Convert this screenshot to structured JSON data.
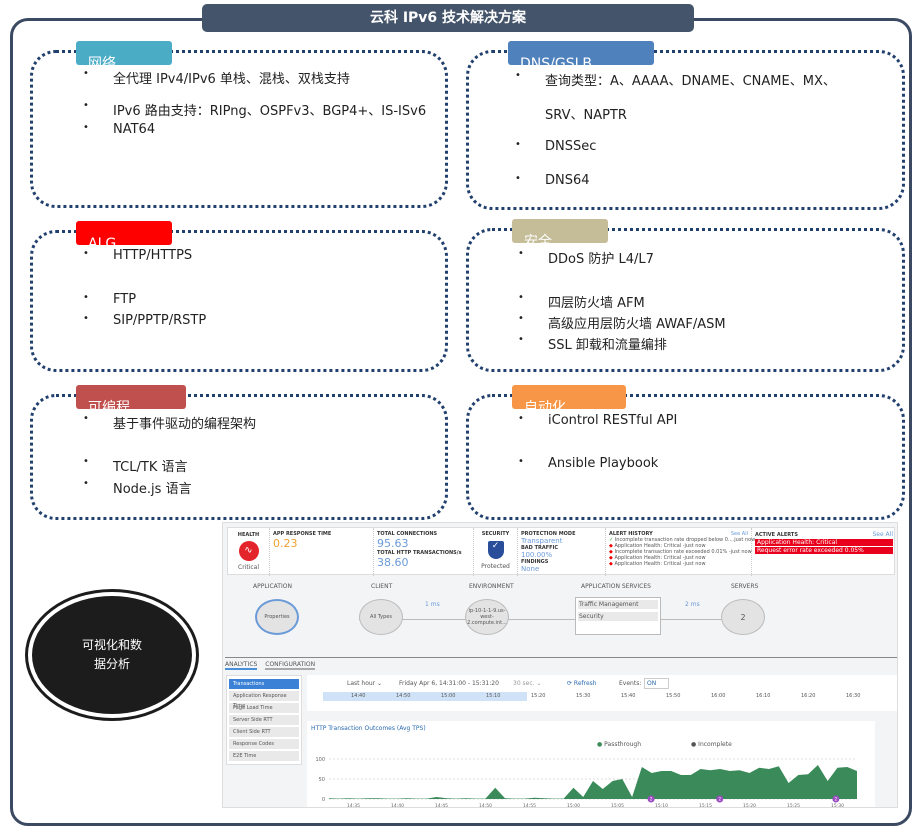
{
  "title": "云科 IPv6 技术解决方案",
  "panels": [
    {
      "tag": "网络",
      "color": "#4bacc6",
      "items": [
        "全代理 IPv4/IPv6 单栈、混栈、双栈支持",
        "IPv6 路由支持：RIPng、OSPFv3、BGP4+、IS-ISv6",
        "NAT64"
      ]
    },
    {
      "tag": "DNS/GSLB",
      "color": "#4f81bd",
      "items": [
        "查询类型：A、AAAA、DNAME、CNAME、MX、",
        "SRV、NAPTR",
        "DNSSec",
        "DNS64"
      ]
    },
    {
      "tag": "ALG",
      "color": "#ff0000",
      "items": [
        "HTTP/HTTPS",
        "FTP",
        "SIP/PPTP/RSTP"
      ]
    },
    {
      "tag": "安全",
      "color": "#c4bd97",
      "items": [
        "DDoS 防护 L4/L7",
        "四层防火墙 AFM",
        "高级应用层防火墙 AWAF/ASM",
        "SSL 卸载和流量编排"
      ]
    },
    {
      "tag": "可编程",
      "color": "#c0504d",
      "items": [
        "基于事件驱动的编程架构",
        "TCL/TK 语言",
        "Node.js 语言"
      ]
    },
    {
      "tag": "自动化",
      "color": "#f79646",
      "items": [
        "iControl RESTful API",
        "Ansible Playbook"
      ]
    }
  ],
  "visual": {
    "line1": "可视化和数",
    "line2": "据分析"
  },
  "dashboard": {
    "health": {
      "label": "HEALTH",
      "status": "Critical"
    },
    "art": {
      "label": "APP RESPONSE TIME",
      "value": "0.23"
    },
    "conn": {
      "label": "TOTAL CONNECTIONS",
      "value": "95.63",
      "label2": "TOTAL HTTP TRANSACTIONS/s",
      "value2": "38.60"
    },
    "security": {
      "label": "SECURITY",
      "status": "Protected"
    },
    "protection": {
      "mode_label": "PROTECTION MODE",
      "mode": "Transparent",
      "bad_label": "BAD TRAFFIC",
      "bad": "100.00%",
      "find_label": "FINDINGS",
      "find": "None"
    },
    "alert_history": {
      "label": "ALERT HISTORY",
      "see_all": "See All",
      "items": [
        "Incomplete transaction rate dropped below 0....just now",
        "Application Health: Critical -just now",
        "Incomplete transaction rate exceeded 0.01% -just now",
        "Application Health: Critical -just now",
        "Application Health: Critical -just now"
      ]
    },
    "active_alerts": {
      "label": "ACTIVE ALERTS",
      "see_all": "See All",
      "items": [
        "Application Health: Critical",
        "Request error rate exceeded 0.05%"
      ]
    },
    "topology": {
      "application": "APPLICATION",
      "client": "CLIENT",
      "environment": "ENVIRONMENT",
      "services": "APPLICATION SERVICES",
      "servers": "SERVERS",
      "app_node": "Properties",
      "client_node": "All Types",
      "env_node": "ip-10-1-1-9.us-west-2.compute.int...",
      "svc1": "Traffic Management",
      "svc2": "Security",
      "server_count": "2",
      "lat1": "1 ms",
      "lat2": "2 ms"
    },
    "tabs": [
      "ANALYTICS",
      "CONFIGURATION"
    ],
    "side": [
      "Transactions",
      "Application Response Time",
      "Page Load Time",
      "Server Side RTT",
      "Client Side RTT",
      "Response Codes",
      "E2E Time"
    ],
    "toolbar": {
      "range": "Last hour ⌄",
      "period": "Friday Apr 6, 14:31:00 - 15:31:20",
      "interval": "30 sec. ⌄",
      "refresh": "⟳ Refresh",
      "events": "Events:",
      "events_state": "ON"
    },
    "timeline": [
      "14:40",
      "14:50",
      "15:00",
      "15:10",
      "15:20",
      "15:30",
      "15:40",
      "15:50",
      "16:00",
      "16:10",
      "16:20",
      "16:30"
    ]
  },
  "chart_data": {
    "type": "area",
    "title": "HTTP Transaction Outcomes (Avg TPS)",
    "legend": [
      "Passthrough",
      "Incomplete"
    ],
    "colors": [
      "#3a8a5a",
      "#111111"
    ],
    "ylim": [
      0,
      100
    ],
    "yticks": [
      0,
      50,
      100
    ],
    "xticks": [
      "14:35",
      "14:40",
      "14:45",
      "14:50",
      "14:55",
      "15:00",
      "15:05",
      "15:10",
      "15:15",
      "15:20",
      "15:25",
      "15:30"
    ],
    "series": [
      {
        "name": "Passthrough",
        "values": [
          2,
          1,
          2,
          1,
          2,
          2,
          1,
          1,
          2,
          1,
          1,
          5,
          2,
          1,
          2,
          1,
          1,
          28,
          2,
          1,
          1,
          3,
          2,
          1,
          1,
          28,
          5,
          45,
          25,
          45,
          50,
          5,
          80,
          65,
          70,
          70,
          60,
          60,
          75,
          72,
          75,
          70,
          72,
          65,
          78,
          75,
          82,
          40,
          60,
          62,
          85,
          45,
          78,
          80,
          70
        ]
      }
    ],
    "events": [
      "2",
      "2",
      "2"
    ]
  }
}
